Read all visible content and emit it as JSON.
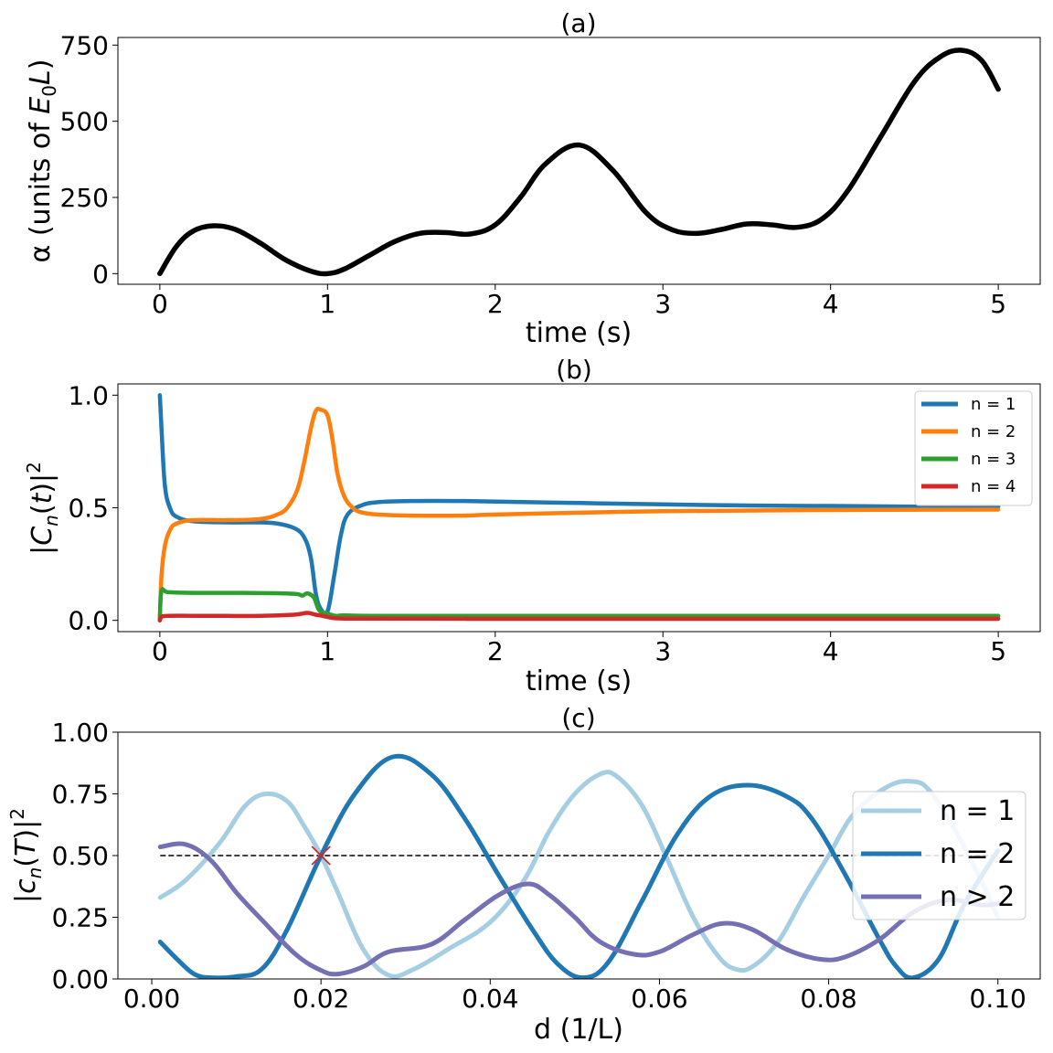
{
  "chart_data": [
    {
      "id": "a",
      "type": "line",
      "title": "(a)",
      "xlabel": "time (s)",
      "ylabel_pre": "α (units of ",
      "ylabel_E": "E",
      "ylabel_sub": "0",
      "ylabel_L": "L",
      "ylabel_post": ")",
      "xlim": [
        -0.25,
        5.25
      ],
      "ylim": [
        -35,
        775
      ],
      "xticks": [
        0,
        1,
        2,
        3,
        4,
        5
      ],
      "xtick_labels": [
        "0",
        "1",
        "2",
        "3",
        "4",
        "5"
      ],
      "yticks": [
        0,
        250,
        500,
        750
      ],
      "ytick_labels": [
        "0",
        "250",
        "500",
        "750"
      ],
      "series": [
        {
          "name": "alpha",
          "color": "#000000",
          "x": [
            0,
            0.1,
            0.2,
            0.32,
            0.45,
            0.6,
            0.75,
            0.9,
            1.0,
            1.1,
            1.25,
            1.4,
            1.55,
            1.7,
            1.85,
            2.0,
            2.15,
            2.3,
            2.5,
            2.7,
            2.9,
            3.05,
            3.2,
            3.35,
            3.5,
            3.65,
            3.8,
            3.95,
            4.1,
            4.3,
            4.5,
            4.65,
            4.78,
            4.9,
            5.0
          ],
          "values": [
            0,
            90,
            140,
            157,
            145,
            100,
            45,
            8,
            0,
            15,
            60,
            105,
            132,
            135,
            130,
            160,
            250,
            360,
            422,
            340,
            200,
            145,
            132,
            145,
            163,
            160,
            152,
            180,
            270,
            450,
            630,
            710,
            733,
            700,
            605
          ]
        }
      ]
    },
    {
      "id": "b",
      "type": "line",
      "title": "(b)",
      "xlabel": "time (s)",
      "ylabel_pre": "|",
      "ylabel_C": "C",
      "ylabel_sub": "n",
      "ylabel_mid": "(",
      "ylabel_t": "t",
      "ylabel_post": ")|",
      "ylabel_sup": "2",
      "xlim": [
        -0.25,
        5.25
      ],
      "ylim": [
        -0.05,
        1.05
      ],
      "xticks": [
        0,
        1,
        2,
        3,
        4,
        5
      ],
      "xtick_labels": [
        "0",
        "1",
        "2",
        "3",
        "4",
        "5"
      ],
      "yticks": [
        0,
        0.5,
        1.0
      ],
      "ytick_labels": [
        "0.0",
        "0.5",
        "1.0"
      ],
      "legend": "top-right",
      "series": [
        {
          "name": "n = 1",
          "color": "#1f77b4",
          "x": [
            0,
            0.01,
            0.03,
            0.06,
            0.1,
            0.2,
            0.4,
            0.6,
            0.7,
            0.8,
            0.86,
            0.9,
            0.93,
            0.96,
            1.0,
            1.04,
            1.08,
            1.12,
            1.2,
            1.3,
            1.5,
            1.8,
            2.2,
            2.6,
            3.0,
            3.5,
            4.0,
            4.5,
            5.0
          ],
          "values": [
            1.0,
            0.85,
            0.6,
            0.5,
            0.46,
            0.44,
            0.435,
            0.435,
            0.43,
            0.41,
            0.37,
            0.28,
            0.12,
            0.05,
            0.04,
            0.2,
            0.38,
            0.47,
            0.51,
            0.525,
            0.53,
            0.53,
            0.525,
            0.52,
            0.515,
            0.51,
            0.508,
            0.505,
            0.505
          ]
        },
        {
          "name": "n = 2",
          "color": "#ff7f0e",
          "x": [
            0,
            0.01,
            0.03,
            0.06,
            0.1,
            0.2,
            0.4,
            0.6,
            0.7,
            0.76,
            0.82,
            0.86,
            0.9,
            0.93,
            0.96,
            1.0,
            1.03,
            1.06,
            1.1,
            1.15,
            1.2,
            1.3,
            1.5,
            1.8,
            2.0,
            2.5,
            3.0,
            4.0,
            5.0
          ],
          "values": [
            0.0,
            0.2,
            0.33,
            0.4,
            0.43,
            0.445,
            0.445,
            0.45,
            0.47,
            0.5,
            0.58,
            0.7,
            0.85,
            0.93,
            0.935,
            0.91,
            0.8,
            0.65,
            0.55,
            0.5,
            0.48,
            0.47,
            0.465,
            0.465,
            0.47,
            0.478,
            0.485,
            0.49,
            0.492
          ]
        },
        {
          "name": "n = 3",
          "color": "#2ca02c",
          "x": [
            0,
            0.01,
            0.05,
            0.2,
            0.5,
            0.8,
            0.85,
            0.88,
            0.92,
            0.95,
            1.0,
            1.05,
            1.1,
            1.3,
            2.0,
            3.0,
            4.0,
            5.0
          ],
          "values": [
            0.0,
            0.13,
            0.125,
            0.122,
            0.122,
            0.118,
            0.11,
            0.12,
            0.1,
            0.045,
            0.03,
            0.02,
            0.022,
            0.02,
            0.02,
            0.02,
            0.02,
            0.02
          ]
        },
        {
          "name": "n = 4",
          "color": "#d62728",
          "x": [
            0,
            0.01,
            0.05,
            0.3,
            0.6,
            0.8,
            0.88,
            0.93,
            0.97,
            1.02,
            1.1,
            2.0,
            3.0,
            4.0,
            5.0
          ],
          "values": [
            0.0,
            0.015,
            0.02,
            0.02,
            0.02,
            0.025,
            0.033,
            0.025,
            0.02,
            0.012,
            0.008,
            0.007,
            0.007,
            0.007,
            0.007
          ]
        }
      ]
    },
    {
      "id": "c",
      "type": "line",
      "title": "(c)",
      "xlabel": "d (1/L)",
      "ylabel_pre": "|",
      "ylabel_c": "c",
      "ylabel_sub": "n",
      "ylabel_mid": "(",
      "ylabel_T": "T",
      "ylabel_post": ")|",
      "ylabel_sup": "2",
      "xlim": [
        -0.004,
        0.105
      ],
      "ylim": [
        0,
        1.0
      ],
      "xticks": [
        0,
        0.02,
        0.04,
        0.06,
        0.08,
        0.1
      ],
      "xtick_labels": [
        "0.00",
        "0.02",
        "0.04",
        "0.06",
        "0.08",
        "0.10"
      ],
      "yticks": [
        0,
        0.25,
        0.5,
        0.75,
        1.0
      ],
      "ytick_labels": [
        "0.00",
        "0.25",
        "0.50",
        "0.75",
        "1.00"
      ],
      "legend": "center-right",
      "reference_line": {
        "y": 0.5,
        "x0": 0.001,
        "x1": 0.1,
        "color": "#000000"
      },
      "marker": {
        "x": 0.02,
        "y": 0.5,
        "symbol": "x",
        "color": "#d62728"
      },
      "series": [
        {
          "name": "n = 1",
          "color": "#a6cee3",
          "x": [
            0.001,
            0.004,
            0.008,
            0.011,
            0.0135,
            0.016,
            0.018,
            0.02,
            0.022,
            0.025,
            0.028,
            0.031,
            0.035,
            0.04,
            0.044,
            0.047,
            0.05,
            0.053,
            0.055,
            0.058,
            0.061,
            0.064,
            0.067,
            0.069,
            0.071,
            0.074,
            0.077,
            0.08,
            0.083,
            0.087,
            0.09,
            0.092,
            0.095,
            0.098,
            0.1
          ],
          "values": [
            0.33,
            0.4,
            0.55,
            0.7,
            0.75,
            0.72,
            0.62,
            0.5,
            0.35,
            0.12,
            0.015,
            0.04,
            0.12,
            0.23,
            0.4,
            0.6,
            0.75,
            0.83,
            0.82,
            0.7,
            0.48,
            0.25,
            0.09,
            0.04,
            0.05,
            0.15,
            0.33,
            0.5,
            0.67,
            0.78,
            0.8,
            0.76,
            0.6,
            0.4,
            0.25
          ]
        },
        {
          "name": "n = 2",
          "color": "#1f78b4",
          "x": [
            0.001,
            0.003,
            0.005,
            0.007,
            0.01,
            0.013,
            0.016,
            0.02,
            0.024,
            0.0285,
            0.033,
            0.037,
            0.041,
            0.045,
            0.048,
            0.051,
            0.054,
            0.058,
            0.062,
            0.066,
            0.0705,
            0.075,
            0.078,
            0.082,
            0.086,
            0.088,
            0.09,
            0.093,
            0.096,
            0.1
          ],
          "values": [
            0.15,
            0.08,
            0.02,
            0.005,
            0.01,
            0.04,
            0.2,
            0.5,
            0.75,
            0.9,
            0.83,
            0.65,
            0.42,
            0.2,
            0.06,
            0.005,
            0.07,
            0.32,
            0.58,
            0.74,
            0.785,
            0.74,
            0.65,
            0.42,
            0.16,
            0.05,
            0.005,
            0.08,
            0.3,
            0.52
          ]
        },
        {
          "name": "n > 2",
          "color": "#7570b3",
          "x": [
            0.001,
            0.004,
            0.007,
            0.01,
            0.013,
            0.017,
            0.02,
            0.022,
            0.025,
            0.028,
            0.033,
            0.037,
            0.041,
            0.0445,
            0.047,
            0.05,
            0.053,
            0.057,
            0.06,
            0.064,
            0.0675,
            0.071,
            0.075,
            0.079,
            0.082,
            0.086,
            0.09,
            0.094,
            0.098,
            0.1
          ],
          "values": [
            0.535,
            0.545,
            0.48,
            0.35,
            0.24,
            0.1,
            0.035,
            0.02,
            0.05,
            0.11,
            0.14,
            0.24,
            0.34,
            0.385,
            0.34,
            0.25,
            0.15,
            0.1,
            0.11,
            0.18,
            0.225,
            0.2,
            0.12,
            0.08,
            0.09,
            0.16,
            0.27,
            0.32,
            0.3,
            0.305
          ]
        }
      ]
    }
  ]
}
